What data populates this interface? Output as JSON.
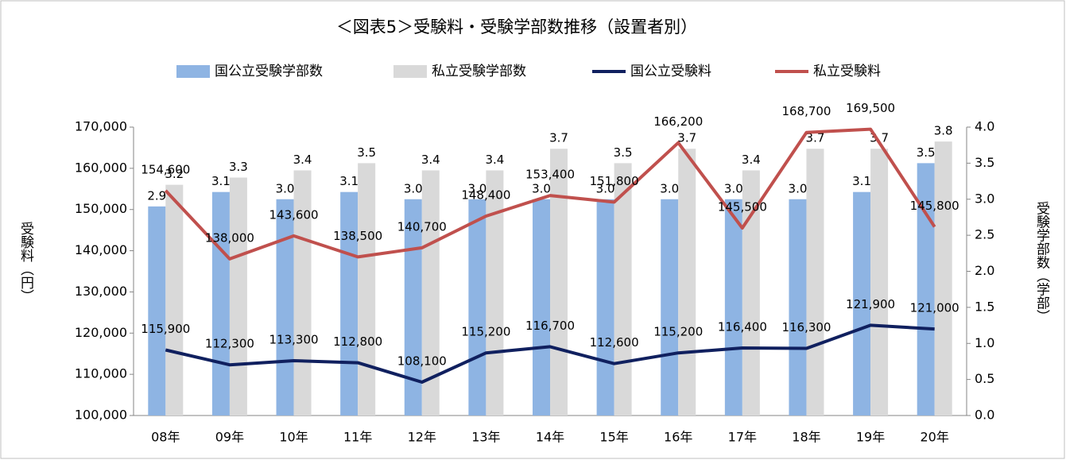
{
  "chart_data": {
    "type": "combo",
    "title": "＜図表5＞受験料・受験学部数推移（設置者別）",
    "y_label": "受験料（円）",
    "y2_label": "受験学部数（学部）",
    "categories": [
      "08年",
      "09年",
      "10年",
      "11年",
      "12年",
      "13年",
      "14年",
      "15年",
      "16年",
      "17年",
      "18年",
      "19年",
      "20年"
    ],
    "series": [
      {
        "name": "国公立受験学部数",
        "type": "bar",
        "axis": "y2",
        "color": "#8eb4e3",
        "values": [
          2.9,
          3.1,
          3,
          3.1,
          3,
          3,
          3,
          3,
          3,
          3,
          3,
          3.1,
          3.5
        ],
        "value_labels": [
          "2.9",
          "3.1",
          "3.0",
          "3.1",
          "3.0",
          "3.0",
          "3.0",
          "3.0",
          "3.0",
          "3.0",
          "3.0",
          "3.1",
          "3.5"
        ]
      },
      {
        "name": "私立受験学部数",
        "type": "bar",
        "axis": "y2",
        "color": "#d9d9d9",
        "values": [
          3.2,
          3.3,
          3.4,
          3.5,
          3.4,
          3.4,
          3.7,
          3.5,
          3.7,
          3.4,
          3.7,
          3.7,
          3.8
        ],
        "value_labels": [
          "3.2",
          "3.3",
          "3.4",
          "3.5",
          "3.4",
          "3.4",
          "3.7",
          "3.5",
          "3.7",
          "3.4",
          "3.7",
          "3.7",
          "3.8"
        ]
      },
      {
        "name": "国公立受験料",
        "type": "line",
        "color": "#10205f",
        "values": [
          115900,
          112300,
          113300,
          112800,
          108100,
          115200,
          116700,
          112600,
          115200,
          116400,
          116300,
          121900,
          121000
        ],
        "value_labels": [
          "115,900",
          "112,300",
          "113,300",
          "112,800",
          "108,100",
          "115,200",
          "116,700",
          "112,600",
          "115,200",
          "116,400",
          "116,300",
          "121,900",
          "121,000"
        ]
      },
      {
        "name": "私立受験料",
        "type": "line",
        "color": "#c0504d",
        "values": [
          154600,
          138000,
          143600,
          138500,
          140700,
          148400,
          153400,
          151800,
          166200,
          145500,
          168700,
          169500,
          145800
        ],
        "value_labels": [
          "154,600",
          "138,000",
          "143,600",
          "138,500",
          "140,700",
          "148,400",
          "153,400",
          "151,800",
          "166,200",
          "145,500",
          "168,700",
          "169,500",
          "145,800"
        ]
      }
    ],
    "ylim": [
      100000,
      170000
    ],
    "yticks": [
      {
        "value": 100000,
        "label": "100,000"
      },
      {
        "value": 110000,
        "label": "110,000"
      },
      {
        "value": 120000,
        "label": "120,000"
      },
      {
        "value": 130000,
        "label": "130,000"
      },
      {
        "value": 140000,
        "label": "140,000"
      },
      {
        "value": 150000,
        "label": "150,000"
      },
      {
        "value": 160000,
        "label": "160,000"
      },
      {
        "value": 170000,
        "label": "170,000"
      }
    ],
    "y2lim": [
      0,
      4
    ],
    "y2ticks": [
      {
        "value": 0,
        "label": "0.0"
      },
      0.5,
      {
        "value": 1,
        "label": "1.0"
      },
      1.5,
      {
        "value": 2,
        "label": "2.0"
      },
      2.5,
      {
        "value": 3,
        "label": "3.0"
      },
      3.5,
      {
        "value": 4,
        "label": "4.0"
      }
    ],
    "legend": "top"
  }
}
